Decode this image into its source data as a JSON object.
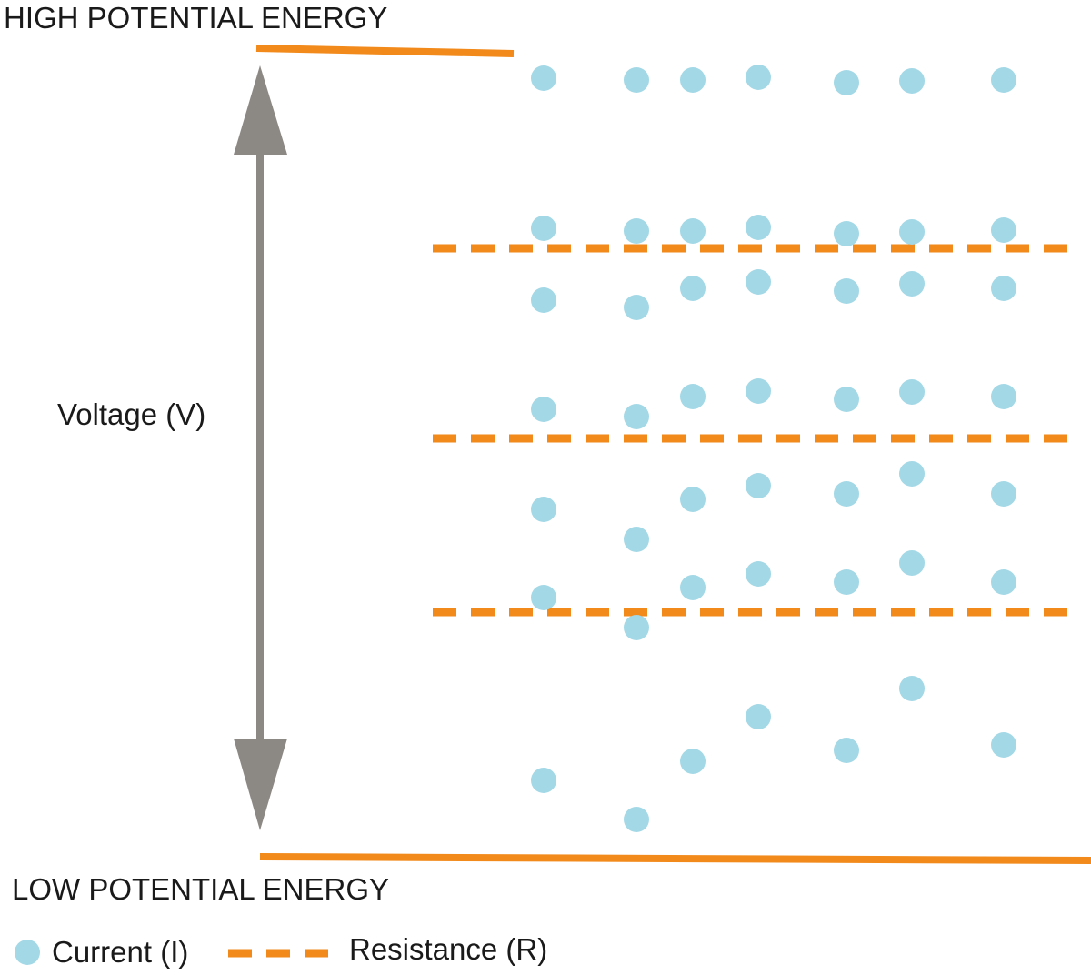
{
  "labels": {
    "high": "HIGH  POTENTIAL  ENERGY",
    "low": "LOW  POTENTIAL  ENERGY",
    "voltage": "Voltage  (V)"
  },
  "legend": {
    "current": "Current  (I)",
    "resistance": "Resistance  (R)"
  },
  "colors": {
    "orange": "#f28a1b",
    "current": "#a3d8e6",
    "arrow": "#8c8884",
    "text": "#1a1a1a"
  }
}
